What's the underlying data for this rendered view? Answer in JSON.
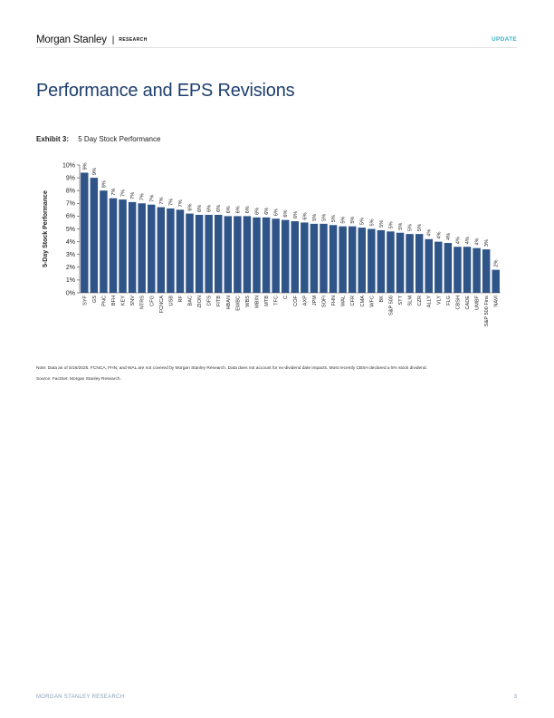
{
  "header": {
    "brand": "Morgan Stanley",
    "separator": "|",
    "section": "RESEARCH",
    "badge": "UPDATE"
  },
  "page_title": "Performance and EPS Revisions",
  "exhibit": {
    "number": "Exhibit 3:",
    "title": "5 Day Stock Performance"
  },
  "chart_data": {
    "type": "bar",
    "ylabel": "5-Day Stock Performance",
    "xlabel": "",
    "ylim": [
      0,
      10
    ],
    "yticks": [
      "0%",
      "1%",
      "2%",
      "3%",
      "4%",
      "5%",
      "6%",
      "7%",
      "8%",
      "9%",
      "10%"
    ],
    "bar_color": "#2f5488",
    "categories": [
      "SYF",
      "GS",
      "PNC",
      "BFH",
      "KEY",
      "SNV",
      "NTRS",
      "CFG",
      "FCNCA",
      "USB",
      "RF",
      "BAC",
      "ZION",
      "DFS",
      "FITB",
      "HBAN",
      "EWBC",
      "WBS",
      "MBIN",
      "MTB",
      "TFC",
      "C",
      "COF",
      "AXP",
      "JPM",
      "SOFI",
      "FHN",
      "WAL",
      "CFR",
      "CMA",
      "WFC",
      "BK",
      "S&P 500",
      "STT",
      "SLM",
      "CZR",
      "ALLY",
      "VLY",
      "FLG",
      "CBSH",
      "CADE",
      "UMBF",
      "S&P 500 Fins",
      "NAVI"
    ],
    "values": [
      9.4,
      9.0,
      8.0,
      7.4,
      7.3,
      7.1,
      7.0,
      6.9,
      6.7,
      6.6,
      6.5,
      6.2,
      6.1,
      6.1,
      6.1,
      6.0,
      6.0,
      6.0,
      5.9,
      5.9,
      5.8,
      5.7,
      5.6,
      5.5,
      5.4,
      5.4,
      5.3,
      5.2,
      5.2,
      5.1,
      5.0,
      4.9,
      4.8,
      4.7,
      4.6,
      4.6,
      4.2,
      4.0,
      3.9,
      3.6,
      3.6,
      3.5,
      3.4,
      1.8
    ],
    "data_labels": [
      "9%",
      "9%",
      "8%",
      "7%",
      "7%",
      "7%",
      "7%",
      "7%",
      "7%",
      "7%",
      "7%",
      "6%",
      "6%",
      "6%",
      "6%",
      "6%",
      "6%",
      "6%",
      "6%",
      "6%",
      "6%",
      "6%",
      "6%",
      "6%",
      "5%",
      "5%",
      "5%",
      "5%",
      "5%",
      "5%",
      "5%",
      "5%",
      "5%",
      "5%",
      "5%",
      "5%",
      "4%",
      "4%",
      "4%",
      "4%",
      "4%",
      "4%",
      "3%",
      "2%"
    ]
  },
  "note": "Note: Data as of 5/16/2025. FCNCA, FHN, and WAL are not covered by Morgan Stanley Research. Data does not account for ex-dividend date impacts. Most recently CBSH declared a 5% stock dividend.",
  "source": "Source: FactSet, Morgan Stanley Research.",
  "footer": {
    "left": "MORGAN STANLEY RESEARCH",
    "page": "3"
  }
}
